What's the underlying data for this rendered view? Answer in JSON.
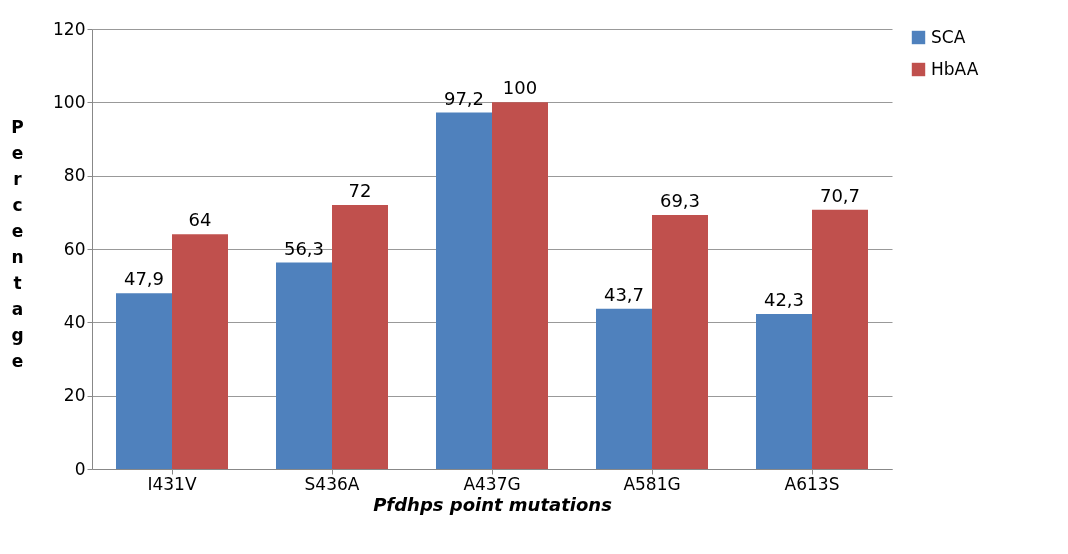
{
  "chart_data": {
    "type": "bar",
    "xlabel": "Pfdhps point mutations",
    "ylabel": "Percentage",
    "categories": [
      "I431V",
      "S436A",
      "A437G",
      "A581G",
      "A613S"
    ],
    "series": [
      {
        "name": "SCA",
        "color": "#4f81bd",
        "values": [
          47.9,
          56.3,
          97.2,
          43.7,
          42.3
        ],
        "value_labels": [
          "47,9",
          "56,3",
          "97,2",
          "43,7",
          "42,3"
        ]
      },
      {
        "name": "HbAA",
        "color": "#c0504d",
        "values": [
          64,
          72,
          100,
          69.3,
          70.7
        ],
        "value_labels": [
          "64",
          "72",
          "100",
          "69,3",
          "70,7"
        ]
      }
    ],
    "ylim": [
      0,
      120
    ],
    "yticks": [
      0,
      20,
      40,
      60,
      80,
      100,
      120
    ],
    "grid": "y",
    "legend": "right"
  }
}
